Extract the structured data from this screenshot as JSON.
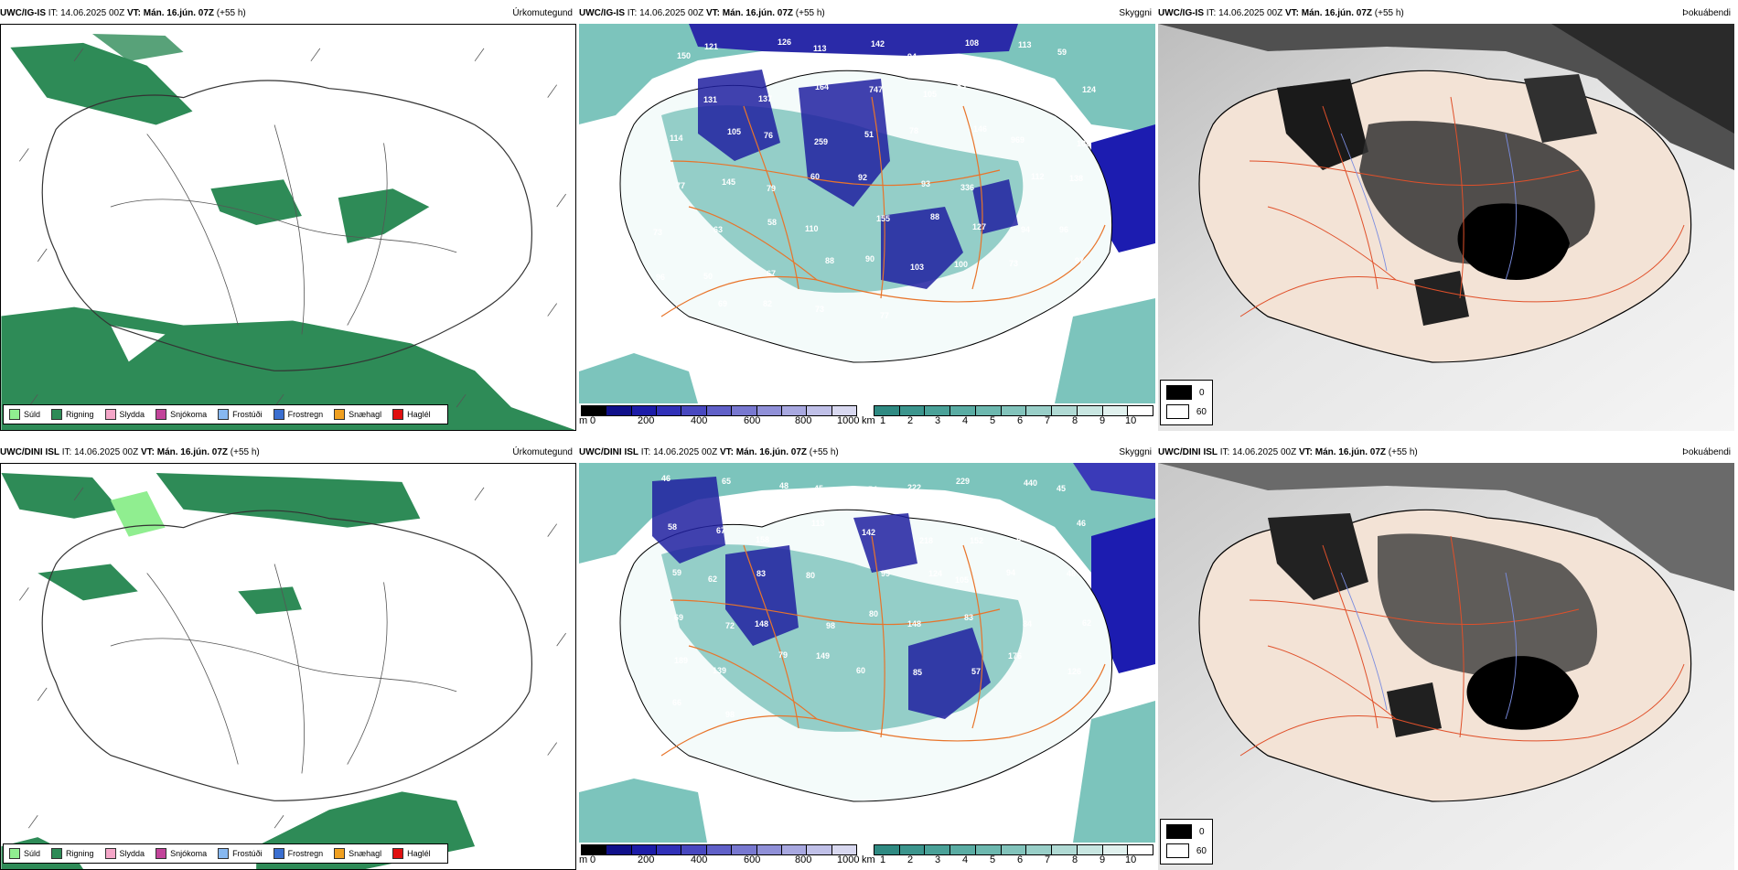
{
  "panels": [
    {
      "model": "UWC/IG-IS",
      "it_label": "IT: 14.06.2025 00Z",
      "vt_label": "VT: Mán. 16.jún. 07Z",
      "lead": "(+55 h)",
      "title": "Úrkomutegund"
    },
    {
      "model": "UWC/IG-IS",
      "it_label": "IT: 14.06.2025 00Z",
      "vt_label": "VT: Mán. 16.jún. 07Z",
      "lead": "(+55 h)",
      "title": "Skyggni"
    },
    {
      "model": "UWC/IG-IS",
      "it_label": "IT: 14.06.2025 00Z",
      "vt_label": "VT: Mán. 16.jún. 07Z",
      "lead": "(+55 h)",
      "title": "Þokuábendi"
    },
    {
      "model": "UWC/DINI ISL",
      "it_label": "IT: 14.06.2025 00Z",
      "vt_label": "VT: Mán. 16.jún. 07Z",
      "lead": "(+55 h)",
      "title": "Úrkomutegund"
    },
    {
      "model": "UWC/DINI ISL",
      "it_label": "IT: 14.06.2025 00Z",
      "vt_label": "VT: Mán. 16.jún. 07Z",
      "lead": "(+55 h)",
      "title": "Skyggni"
    },
    {
      "model": "UWC/DINI ISL",
      "it_label": "IT: 14.06.2025 00Z",
      "vt_label": "VT: Mán. 16.jún. 07Z",
      "lead": "(+55 h)",
      "title": "Þokuábendi"
    }
  ],
  "precip_legend": [
    {
      "label": "Súld",
      "color": "#90ee90"
    },
    {
      "label": "Rigning",
      "color": "#2e8b57"
    },
    {
      "label": "Slydda",
      "color": "#f4a6c8"
    },
    {
      "label": "Snjókoma",
      "color": "#c2449a"
    },
    {
      "label": "Frostúði",
      "color": "#87b8f0"
    },
    {
      "label": "Frostregn",
      "color": "#3b6fd0"
    },
    {
      "label": "Snæhagl",
      "color": "#f0a020"
    },
    {
      "label": "Haglél",
      "color": "#e01010"
    }
  ],
  "vis_bar_m": {
    "unit": "m",
    "ticks": [
      "0",
      "200",
      "400",
      "600",
      "800",
      "1000"
    ],
    "colors": [
      "#000000",
      "#10108a",
      "#1c1ca8",
      "#3030b8",
      "#4848c0",
      "#6060c8",
      "#7878d0",
      "#9090d8",
      "#a8a8e0",
      "#c0c0e8",
      "#d8d8f0"
    ]
  },
  "vis_bar_km": {
    "unit": "km",
    "ticks": [
      "1",
      "2",
      "3",
      "4",
      "5",
      "6",
      "7",
      "8",
      "9",
      "10"
    ],
    "colors": [
      "#2f8a82",
      "#3c958d",
      "#4aa198",
      "#5aaca3",
      "#6db8af",
      "#82c3bb",
      "#99cfc8",
      "#b0dad4",
      "#c8e6e1",
      "#e0f1ee",
      "#ffffff"
    ]
  },
  "fog_legend": [
    {
      "value": "0",
      "color": "#000000"
    },
    {
      "value": "60",
      "color": "#ffffff"
    }
  ],
  "vis_labels_top": [
    "150",
    "121",
    "126",
    "113",
    "142",
    "94",
    "108",
    "113",
    "59",
    "97",
    "131",
    "137",
    "164",
    "747",
    "105",
    "83",
    "105",
    "124",
    "114",
    "105",
    "76",
    "259",
    "51",
    "78",
    "146",
    "969",
    "108",
    "77",
    "145",
    "79",
    "60",
    "92",
    "93",
    "336",
    "112",
    "138",
    "73",
    "63",
    "58",
    "110",
    "155",
    "88",
    "127",
    "94",
    "96",
    "96",
    "50",
    "67",
    "88",
    "90",
    "103",
    "100",
    "73",
    "97",
    "93",
    "69",
    "82",
    "73",
    "77"
  ],
  "vis_labels_bottom": [
    "46",
    "65",
    "48",
    "45",
    "54",
    "222",
    "229",
    "440",
    "45",
    "58",
    "67",
    "158",
    "113",
    "142",
    "218",
    "152",
    "277",
    "46",
    "59",
    "62",
    "83",
    "80",
    "99",
    "124",
    "105",
    "94",
    "48",
    "69",
    "72",
    "148",
    "98",
    "80",
    "148",
    "83",
    "84",
    "62",
    "189",
    "139",
    "79",
    "149",
    "60",
    "85",
    "57",
    "176",
    "126",
    "66",
    "98"
  ]
}
